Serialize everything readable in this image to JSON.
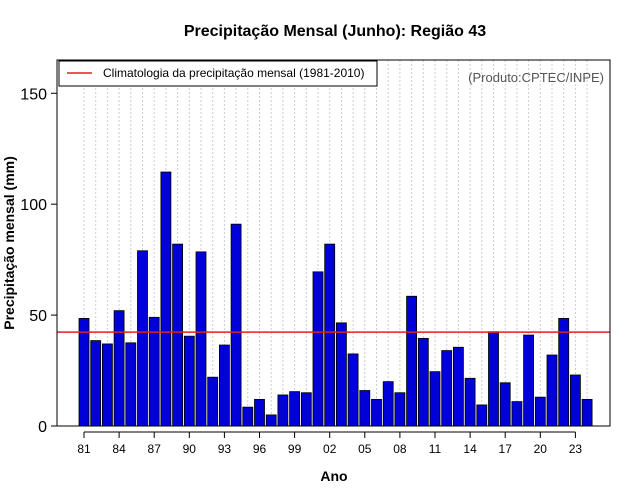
{
  "chart_data": {
    "type": "bar",
    "title": "Precipitação Mensal (Junho): Região 43",
    "xlabel": "Ano",
    "ylabel": "Precipitação mensal (mm)",
    "ylim": [
      0,
      165
    ],
    "yticks": [
      0,
      50,
      100,
      150
    ],
    "years": [
      1981,
      1982,
      1983,
      1984,
      1985,
      1986,
      1987,
      1988,
      1989,
      1990,
      1991,
      1992,
      1993,
      1994,
      1995,
      1996,
      1997,
      1998,
      1999,
      2000,
      2001,
      2002,
      2003,
      2004,
      2005,
      2006,
      2007,
      2008,
      2009,
      2010,
      2011,
      2012,
      2013,
      2014,
      2015,
      2016,
      2017,
      2018,
      2019,
      2020,
      2021,
      2022,
      2023,
      2024
    ],
    "values": [
      48.5,
      38.5,
      37,
      52,
      37.5,
      79,
      49,
      114.5,
      82,
      40.5,
      78.5,
      22,
      36.5,
      91,
      8.5,
      12,
      5,
      14,
      15.5,
      15,
      69.5,
      82,
      46.5,
      32.5,
      16,
      12,
      20,
      15,
      58.5,
      39.5,
      24.5,
      34,
      35.5,
      21.5,
      9.5,
      42.5,
      19.5,
      11,
      41,
      13,
      32,
      48.5,
      23,
      12
    ],
    "xtick_labels": [
      "81",
      "84",
      "87",
      "90",
      "93",
      "96",
      "99",
      "02",
      "05",
      "08",
      "11",
      "14",
      "17",
      "20",
      "23"
    ],
    "xtick_indices": [
      0,
      3,
      6,
      9,
      12,
      15,
      18,
      21,
      24,
      27,
      30,
      33,
      36,
      39,
      42
    ],
    "climatology": 42.3,
    "legend": {
      "label": "Climatologia da precipitação mensal (1981-2010)",
      "position": "top-left"
    },
    "credit": "(Produto:CPTEC/INPE)",
    "grid": "vertical-dotted",
    "colors": {
      "bar": "#0000d8",
      "bar_edge": "#000000",
      "climatology": "#dd2222",
      "grid": "#cccccc"
    }
  }
}
